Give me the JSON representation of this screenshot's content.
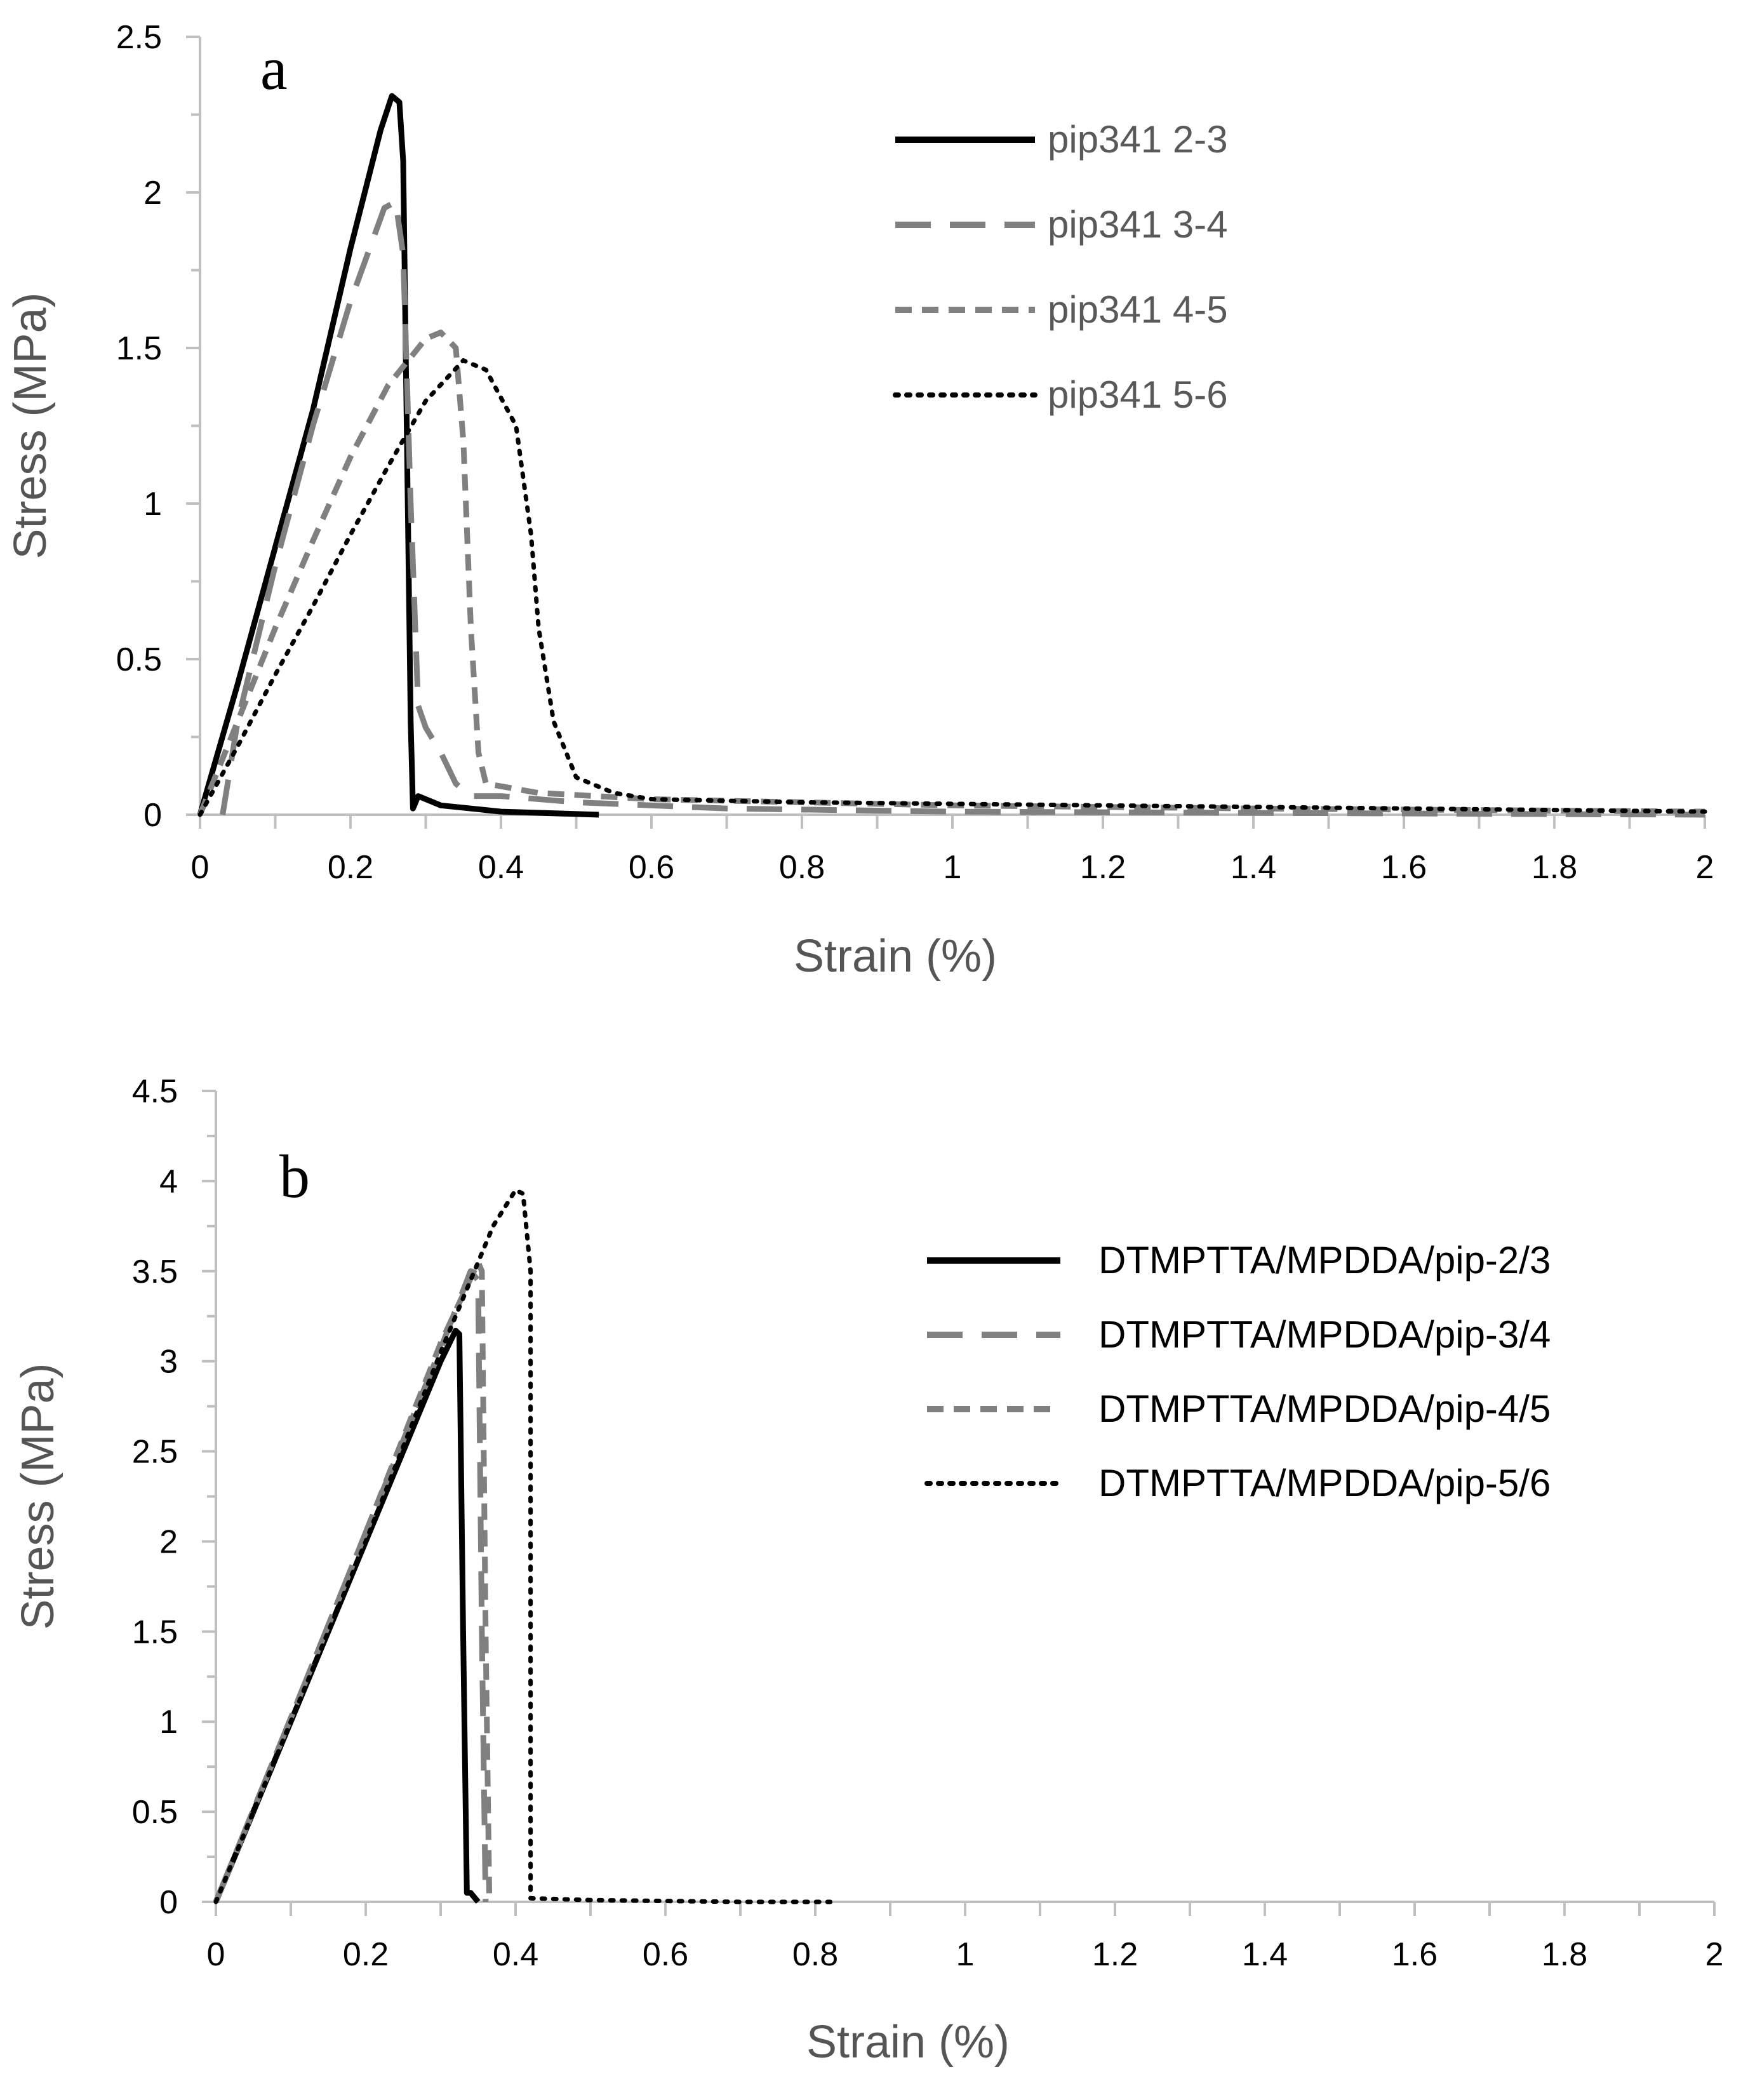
{
  "chart_data": [
    {
      "type": "line",
      "panel_label": "a",
      "xlabel": "Strain (%)",
      "ylabel": "Stress (MPa)",
      "xlim": [
        0,
        2
      ],
      "ylim": [
        0,
        2.5
      ],
      "x_ticks": [
        "0",
        "0.2",
        "0.4",
        "0.6",
        "0.8",
        "1",
        "1.2",
        "1.4",
        "1.6",
        "1.8",
        "2"
      ],
      "y_ticks": [
        "0",
        "0.5",
        "1",
        "1.5",
        "2",
        "2.5"
      ],
      "legend_position": "top-right",
      "legend_label_color": "#595959",
      "series": [
        {
          "name": "pip341 2-3",
          "color": "#000000",
          "style": "solid",
          "points": [
            [
              0,
              0
            ],
            [
              0.05,
              0.42
            ],
            [
              0.1,
              0.86
            ],
            [
              0.15,
              1.3
            ],
            [
              0.2,
              1.82
            ],
            [
              0.24,
              2.2
            ],
            [
              0.255,
              2.31
            ],
            [
              0.265,
              2.29
            ],
            [
              0.27,
              2.1
            ],
            [
              0.275,
              1.2
            ],
            [
              0.28,
              0.3
            ],
            [
              0.283,
              0.02
            ],
            [
              0.29,
              0.06
            ],
            [
              0.32,
              0.03
            ],
            [
              0.4,
              0.01
            ],
            [
              0.53,
              0.0
            ]
          ]
        },
        {
          "name": "pip341 3-4",
          "color": "#808080",
          "style": "dashed",
          "points": [
            [
              0.03,
              0.0
            ],
            [
              0.05,
              0.3
            ],
            [
              0.1,
              0.8
            ],
            [
              0.15,
              1.25
            ],
            [
              0.2,
              1.65
            ],
            [
              0.245,
              1.95
            ],
            [
              0.26,
              1.97
            ],
            [
              0.27,
              1.8
            ],
            [
              0.28,
              1.0
            ],
            [
              0.29,
              0.35
            ],
            [
              0.3,
              0.28
            ],
            [
              0.32,
              0.2
            ],
            [
              0.34,
              0.1
            ],
            [
              0.36,
              0.06
            ],
            [
              0.4,
              0.06
            ],
            [
              0.5,
              0.04
            ],
            [
              0.7,
              0.02
            ],
            [
              1.0,
              0.01
            ],
            [
              2.0,
              0.0
            ]
          ]
        },
        {
          "name": "pip341 4-5",
          "color": "#808080",
          "style": "short-dashed",
          "points": [
            [
              0,
              0
            ],
            [
              0.05,
              0.3
            ],
            [
              0.1,
              0.6
            ],
            [
              0.15,
              0.88
            ],
            [
              0.2,
              1.15
            ],
            [
              0.25,
              1.38
            ],
            [
              0.3,
              1.53
            ],
            [
              0.32,
              1.55
            ],
            [
              0.34,
              1.5
            ],
            [
              0.35,
              1.2
            ],
            [
              0.36,
              0.6
            ],
            [
              0.37,
              0.2
            ],
            [
              0.38,
              0.1
            ],
            [
              0.45,
              0.07
            ],
            [
              0.6,
              0.05
            ],
            [
              0.8,
              0.04
            ],
            [
              1.0,
              0.03
            ],
            [
              1.4,
              0.02
            ],
            [
              2.0,
              0.01
            ]
          ]
        },
        {
          "name": "pip341 5-6",
          "color": "#000000",
          "style": "dotted",
          "points": [
            [
              0,
              0
            ],
            [
              0.05,
              0.22
            ],
            [
              0.1,
              0.45
            ],
            [
              0.15,
              0.67
            ],
            [
              0.2,
              0.9
            ],
            [
              0.25,
              1.12
            ],
            [
              0.3,
              1.33
            ],
            [
              0.35,
              1.46
            ],
            [
              0.38,
              1.43
            ],
            [
              0.42,
              1.25
            ],
            [
              0.44,
              0.9
            ],
            [
              0.45,
              0.6
            ],
            [
              0.47,
              0.3
            ],
            [
              0.5,
              0.12
            ],
            [
              0.55,
              0.07
            ],
            [
              0.6,
              0.05
            ],
            [
              0.8,
              0.04
            ],
            [
              1.2,
              0.03
            ],
            [
              2.0,
              0.01
            ]
          ]
        }
      ]
    },
    {
      "type": "line",
      "panel_label": "b",
      "xlabel": "Strain (%)",
      "ylabel": "Stress (MPa)",
      "xlim": [
        0,
        2
      ],
      "ylim": [
        0,
        4.5
      ],
      "x_ticks": [
        "0",
        "0.2",
        "0.4",
        "0.6",
        "0.8",
        "1",
        "1.2",
        "1.4",
        "1.6",
        "1.8",
        "2"
      ],
      "y_ticks": [
        "0",
        "0.5",
        "1",
        "1.5",
        "2",
        "2.5",
        "3",
        "3.5",
        "4",
        "4.5"
      ],
      "legend_position": "right",
      "legend_label_color": "#000000",
      "series": [
        {
          "name": "DTMPTTA/MPDDA/pip-2/3",
          "color": "#000000",
          "style": "solid",
          "points": [
            [
              0,
              0
            ],
            [
              0.1,
              1.0
            ],
            [
              0.2,
              2.0
            ],
            [
              0.3,
              3.0
            ],
            [
              0.32,
              3.17
            ],
            [
              0.325,
              3.15
            ],
            [
              0.33,
              1.5
            ],
            [
              0.335,
              0.05
            ],
            [
              0.34,
              0.05
            ],
            [
              0.35,
              0.0
            ]
          ]
        },
        {
          "name": "DTMPTTA/MPDDA/pip-3/4",
          "color": "#808080",
          "style": "dashed",
          "points": [
            [
              0,
              0
            ],
            [
              0.1,
              1.02
            ],
            [
              0.2,
              2.05
            ],
            [
              0.3,
              3.07
            ],
            [
              0.34,
              3.5
            ],
            [
              0.35,
              3.45
            ],
            [
              0.355,
              1.5
            ],
            [
              0.36,
              0.0
            ]
          ]
        },
        {
          "name": "DTMPTTA/MPDDA/pip-4/5",
          "color": "#808080",
          "style": "short-dashed",
          "points": [
            [
              0,
              0
            ],
            [
              0.1,
              1.02
            ],
            [
              0.2,
              2.05
            ],
            [
              0.3,
              3.1
            ],
            [
              0.35,
              3.55
            ],
            [
              0.355,
              3.5
            ],
            [
              0.36,
              1.5
            ],
            [
              0.365,
              0.0
            ]
          ]
        },
        {
          "name": "DTMPTTA/MPDDA/pip-5/6",
          "color": "#000000",
          "style": "dotted",
          "points": [
            [
              0,
              0
            ],
            [
              0.1,
              1.0
            ],
            [
              0.2,
              2.0
            ],
            [
              0.3,
              3.05
            ],
            [
              0.37,
              3.75
            ],
            [
              0.4,
              3.95
            ],
            [
              0.41,
              3.93
            ],
            [
              0.42,
              3.5
            ],
            [
              0.42,
              0.02
            ],
            [
              0.5,
              0.01
            ],
            [
              0.7,
              0.0
            ],
            [
              0.82,
              0.0
            ]
          ]
        }
      ]
    }
  ]
}
